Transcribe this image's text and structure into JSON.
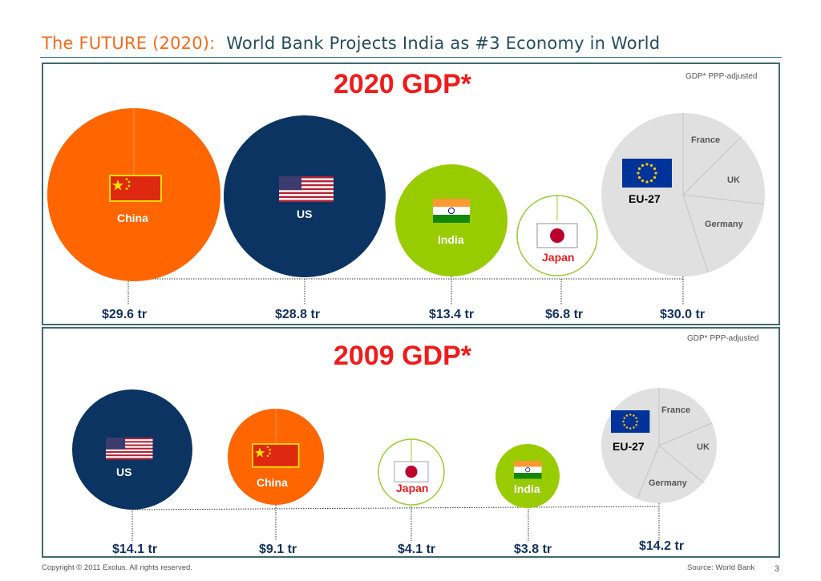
{
  "header": {
    "title_accent": "The FUTURE (2020):",
    "title_main": "World Bank Projects India as #3 Economy in World"
  },
  "top_panel": {
    "heading": "2020 GDP*",
    "note": "GDP* PPP-adjusted",
    "labels": {
      "china": "China",
      "us": "US",
      "india": "India",
      "japan": "Japan",
      "eu": "EU-27",
      "france": "France",
      "uk": "UK",
      "germany": "Germany"
    },
    "values": {
      "china": "$29.6 tr",
      "us": "$28.8 tr",
      "india": "$13.4 tr",
      "japan": "$6.8 tr",
      "eu": "$30.0 tr"
    }
  },
  "bottom_panel": {
    "heading": "2009 GDP*",
    "note": "GDP* PPP-adjusted",
    "labels": {
      "us": "US",
      "china": "China",
      "japan": "Japan",
      "india": "India",
      "eu": "EU-27",
      "france": "France",
      "uk": "UK",
      "germany": "Germany"
    },
    "values": {
      "us": "$14.1 tr",
      "china": "$9.1 tr",
      "japan": "$4.1 tr",
      "india": "$3.8 tr",
      "eu": "$14.2 tr"
    }
  },
  "footer": {
    "copyright": "Copyright © 2011 Exolus. All rights reserved.",
    "source": "Source:  World Bank",
    "page": "3"
  },
  "colors": {
    "china": "#ff6600",
    "us": "#0b3462",
    "india": "#99cc00",
    "japan_outline": "#99cc33",
    "eu": "#e0e0e0",
    "heading": "#ee1c1c",
    "title_accent": "#f26b1d",
    "title_main": "#254d5b"
  },
  "icons": [
    "china-flag-icon",
    "us-flag-icon",
    "india-flag-icon",
    "japan-flag-icon",
    "eu-flag-icon"
  ]
}
